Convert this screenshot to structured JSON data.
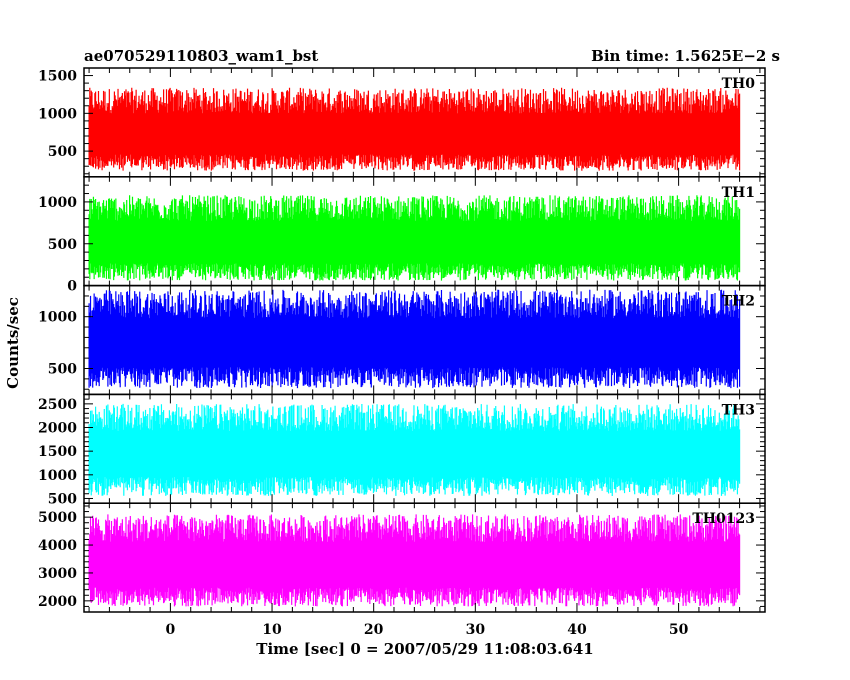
{
  "chart_data": {
    "type": "line",
    "title_left": "ae070529110803_wam1_bst",
    "title_right": "Bin time: 1.5625E−2 s",
    "xlabel": "Time [sec] 0 = 2007/05/29 11:08:03.641",
    "ylabel": "Counts/sec",
    "xlim": [
      -8.5,
      58.5
    ],
    "data_x_range": [
      -8.0,
      56.0
    ],
    "x_ticks": [
      0,
      10,
      20,
      30,
      40,
      50
    ],
    "x_tick_labels": [
      "0",
      "10",
      "20",
      "30",
      "40",
      "50"
    ],
    "grid": false,
    "panels": [
      {
        "name": "TH0",
        "color": "#ff0000",
        "ylim": [
          160,
          1600
        ],
        "y_ticks": [
          500,
          1000,
          1500
        ],
        "y_tick_labels": [
          "500",
          "1000",
          "1500"
        ],
        "mean": 720,
        "spread_low": 480,
        "spread_high": 620
      },
      {
        "name": "TH1",
        "color": "#00ff00",
        "ylim": [
          0,
          1300
        ],
        "y_ticks": [
          0,
          500,
          1000
        ],
        "y_tick_labels": [
          "0",
          "500",
          "1000"
        ],
        "mean": 520,
        "spread_low": 460,
        "spread_high": 560
      },
      {
        "name": "TH2",
        "color": "#0000ff",
        "ylim": [
          250,
          1300
        ],
        "y_ticks": [
          500,
          1000
        ],
        "y_tick_labels": [
          "500",
          "1000"
        ],
        "mean": 760,
        "spread_low": 450,
        "spread_high": 500
      },
      {
        "name": "TH3",
        "color": "#00ffff",
        "ylim": [
          400,
          2700
        ],
        "y_ticks": [
          500,
          1000,
          1500,
          2000,
          2500
        ],
        "y_tick_labels": [
          "500",
          "1000",
          "1500",
          "2000",
          "2500"
        ],
        "mean": 1450,
        "spread_low": 900,
        "spread_high": 1050
      },
      {
        "name": "TH0123",
        "color": "#ff00ff",
        "ylim": [
          1600,
          5500
        ],
        "y_ticks": [
          2000,
          3000,
          4000,
          5000
        ],
        "y_tick_labels": [
          "2000",
          "3000",
          "4000",
          "5000"
        ],
        "mean": 3300,
        "spread_low": 1500,
        "spread_high": 1800
      }
    ]
  }
}
